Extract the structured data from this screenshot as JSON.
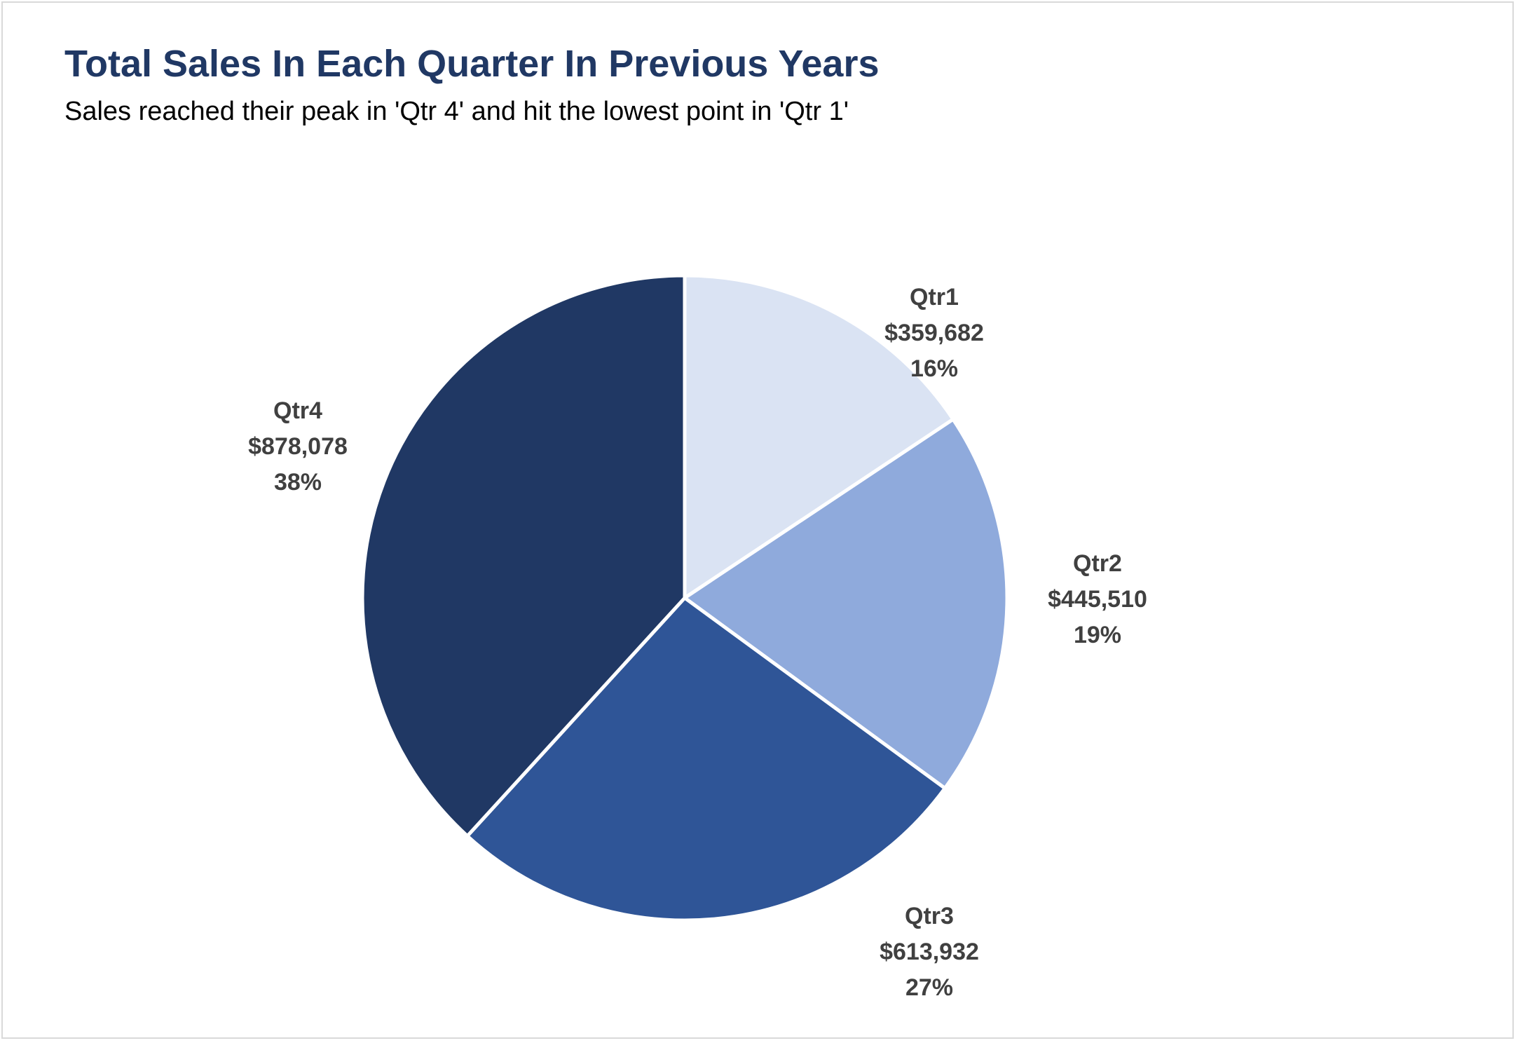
{
  "chart_data": {
    "type": "pie",
    "title": "Total Sales In Each Quarter In Previous Years",
    "subtitle": "Sales reached their peak in 'Qtr 4' and hit the lowest point in 'Qtr 1'",
    "slices": [
      {
        "label": "Qtr1",
        "value": 359682,
        "value_label": "$359,682",
        "percent_label": "16%",
        "color": "#dae3f3"
      },
      {
        "label": "Qtr2",
        "value": 445510,
        "value_label": "$445,510",
        "percent_label": "19%",
        "color": "#8faadc"
      },
      {
        "label": "Qtr3",
        "value": 613932,
        "value_label": "$613,932",
        "percent_label": "27%",
        "color": "#2f5597"
      },
      {
        "label": "Qtr4",
        "value": 878078,
        "value_label": "$878,078",
        "percent_label": "38%",
        "color": "#203864"
      }
    ],
    "start_angle": "12 o'clock, clockwise",
    "legend": "none"
  }
}
